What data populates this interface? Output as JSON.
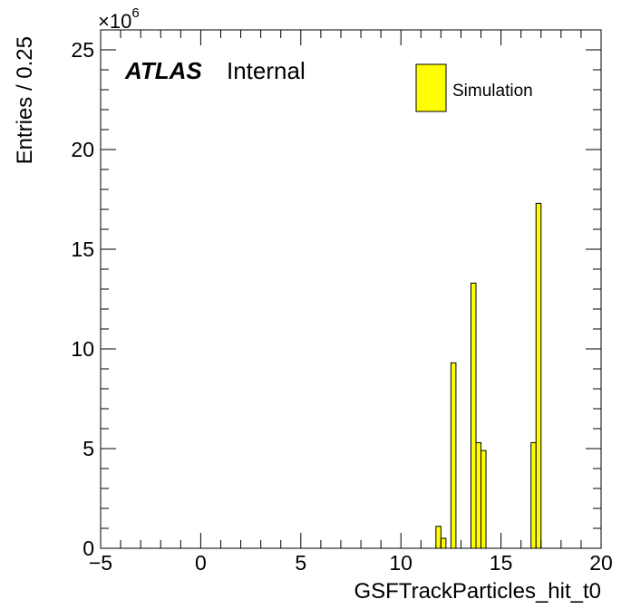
{
  "chart_data": {
    "type": "bar",
    "title": "",
    "xlabel": "GSFTrackParticles_hit_t0",
    "ylabel": "Entries / 0.25",
    "xlim": [
      -5,
      20
    ],
    "ylim": [
      0,
      26
    ],
    "y_multiplier": "×10",
    "y_multiplier_exponent": "6",
    "x_ticks": [
      "−5",
      "0",
      "5",
      "10",
      "15",
      "20"
    ],
    "y_ticks": [
      "0",
      "5",
      "10",
      "15",
      "20",
      "25"
    ],
    "bin_width": 0.25,
    "bar_color": "#ffff00",
    "grid": false,
    "legend_position": "top-right",
    "experiment_label": "ATLAS",
    "status_label": "Internal",
    "series": [
      {
        "name": "Simulation",
        "bins": [
          {
            "x": 11.75,
            "value": 1.1
          },
          {
            "x": 12.0,
            "value": 0.5
          },
          {
            "x": 12.5,
            "value": 9.3
          },
          {
            "x": 13.5,
            "value": 13.3
          },
          {
            "x": 13.75,
            "value": 5.3
          },
          {
            "x": 14.0,
            "value": 4.9
          },
          {
            "x": 16.5,
            "value": 5.3
          },
          {
            "x": 16.75,
            "value": 17.3
          }
        ]
      }
    ]
  }
}
